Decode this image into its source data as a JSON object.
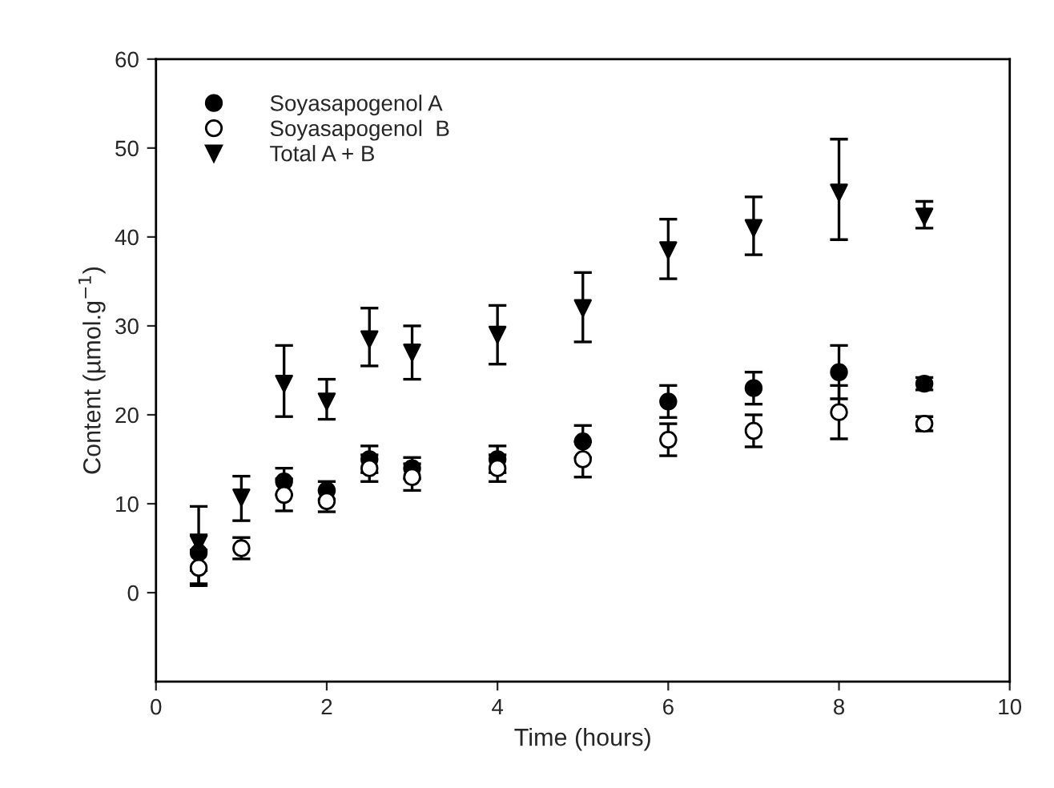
{
  "chart_data": {
    "type": "scatter",
    "xlabel": "Time (hours)",
    "ylabel": "Content (µmol.g$^{−1}$)",
    "x": [
      0.5,
      1,
      1.5,
      2,
      2.5,
      3,
      4,
      5,
      6,
      7,
      8,
      9
    ],
    "xlim": [
      0,
      10
    ],
    "xticks": [
      0,
      2,
      4,
      6,
      8,
      10
    ],
    "ylim": [
      -10,
      60
    ],
    "yticks": [
      0,
      10,
      20,
      30,
      40,
      50,
      60
    ],
    "grid": false,
    "legend": "top left",
    "series": [
      {
        "name": "Soyasapogenol A",
        "color": "#000000",
        "marker": "circle",
        "values": [
          4.5,
          null,
          12.5,
          11.5,
          15,
          14,
          15,
          17,
          21.5,
          23,
          24.8,
          23.5
        ],
        "errors": [
          2,
          null,
          1.5,
          1,
          1.5,
          1.2,
          1.5,
          1.8,
          1.8,
          1.8,
          3,
          0.7
        ]
      },
      {
        "name": "Soyasapogenol  B",
        "color": "#000000",
        "marker": "open circle",
        "values": [
          2.8,
          5,
          11,
          10.3,
          14,
          13,
          14,
          15,
          17.2,
          18.2,
          20.3,
          19
        ],
        "errors": [
          2,
          1.2,
          1.8,
          1.2,
          1.5,
          1.5,
          1.5,
          2,
          1.8,
          1.8,
          3,
          0.8
        ]
      },
      {
        "name": "Total A + B",
        "color": "#000000",
        "marker": "triangle",
        "values": [
          5.5,
          10.7,
          23.5,
          21.5,
          28.5,
          27,
          29,
          32,
          38.5,
          41,
          45,
          42.3
        ],
        "errors": [
          [
            1,
            9.7
          ],
          [
            8.1,
            13.1
          ],
          [
            19.8,
            27.8
          ],
          [
            19.5,
            24
          ],
          [
            25.5,
            32
          ],
          [
            24,
            30
          ],
          [
            25.7,
            32.3
          ],
          [
            28.2,
            36
          ],
          [
            35.3,
            42
          ],
          [
            38,
            44.5
          ],
          [
            39.7,
            51
          ],
          [
            41,
            44
          ]
        ]
      }
    ]
  }
}
